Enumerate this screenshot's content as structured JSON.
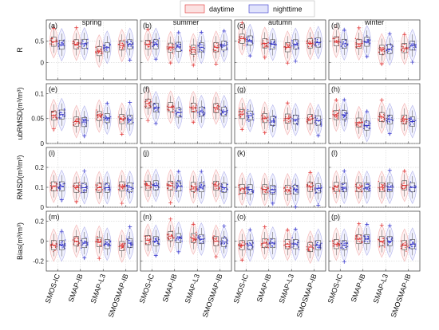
{
  "legend": {
    "daytime": "daytime",
    "nighttime": "nighttime",
    "daytime_color": "#e03030",
    "nighttime_color": "#3333cc",
    "daytime_fill": "#fbe1e1",
    "nighttime_fill": "#e1e3fb"
  },
  "seasons": [
    "spring",
    "summer",
    "autumn",
    "winter"
  ],
  "products": [
    "SMOS-IC",
    "SMAP-IB",
    "SMAP-L3",
    "SMOSMAP-IB"
  ],
  "chart_data": {
    "type": "violin-box-scatter",
    "grid": true,
    "legend_position": "top-center",
    "series": [
      {
        "name": "daytime"
      },
      {
        "name": "nighttime"
      }
    ],
    "metrics": [
      {
        "key": "R",
        "ylabel": "R",
        "ylim": [
          -0.4,
          1.0
        ],
        "ticks": [
          0,
          0.5
        ],
        "tick_labels": [
          "0",
          "0.5"
        ],
        "panels": [
          "(a)",
          "(b)",
          "(c)",
          "(d)"
        ],
        "medians": {
          "spring": {
            "daytime": [
              0.49,
              0.43,
              0.27,
              0.4
            ],
            "nighttime": [
              0.42,
              0.44,
              0.36,
              0.43
            ]
          },
          "summer": {
            "daytime": [
              0.42,
              0.35,
              0.3,
              0.36
            ],
            "nighttime": [
              0.43,
              0.37,
              0.36,
              0.4
            ]
          },
          "autumn": {
            "daytime": [
              0.56,
              0.45,
              0.36,
              0.45
            ],
            "nighttime": [
              0.52,
              0.43,
              0.43,
              0.47
            ]
          },
          "winter": {
            "daytime": [
              0.5,
              0.44,
              0.3,
              0.34
            ],
            "nighttime": [
              0.44,
              0.49,
              0.32,
              0.4
            ]
          }
        }
      },
      {
        "key": "ubRMSD",
        "ylabel": "ubRMSD(m³/m³)",
        "ylim": [
          0.0,
          0.12
        ],
        "ticks": [
          0,
          0.05,
          0.1
        ],
        "tick_labels": [
          "0",
          "0.05",
          "0.1"
        ],
        "panels": [
          "(e)",
          "(f)",
          "(g)",
          "(h)"
        ],
        "medians": {
          "spring": {
            "daytime": [
              0.056,
              0.044,
              0.055,
              0.049
            ],
            "nighttime": [
              0.058,
              0.043,
              0.051,
              0.048
            ]
          },
          "summer": {
            "daytime": [
              0.08,
              0.073,
              0.072,
              0.071
            ],
            "nighttime": [
              0.072,
              0.062,
              0.064,
              0.064
            ]
          },
          "autumn": {
            "daytime": [
              0.059,
              0.051,
              0.05,
              0.049
            ],
            "nighttime": [
              0.056,
              0.045,
              0.048,
              0.046
            ]
          },
          "winter": {
            "daytime": [
              0.057,
              0.042,
              0.053,
              0.048
            ],
            "nighttime": [
              0.057,
              0.036,
              0.048,
              0.044
            ]
          }
        }
      },
      {
        "key": "RMSD",
        "ylabel": "RMSD(m³/m³)",
        "ylim": [
          0.0,
          0.3
        ],
        "ticks": [
          0,
          0.1,
          0.2
        ],
        "tick_labels": [
          "0",
          "0.1",
          "0.2"
        ],
        "panels": [
          "(i)",
          "(j)",
          "(k)",
          "(l)"
        ],
        "medians": {
          "spring": {
            "daytime": [
              0.105,
              0.098,
              0.098,
              0.105
            ],
            "nighttime": [
              0.105,
              0.098,
              0.098,
              0.1
            ]
          },
          "summer": {
            "daytime": [
              0.108,
              0.108,
              0.102,
              0.108
            ],
            "nighttime": [
              0.11,
              0.105,
              0.1,
              0.098
            ]
          },
          "autumn": {
            "daytime": [
              0.092,
              0.09,
              0.088,
              0.102
            ],
            "nighttime": [
              0.09,
              0.088,
              0.088,
              0.095
            ]
          },
          "winter": {
            "daytime": [
              0.102,
              0.1,
              0.1,
              0.11
            ],
            "nighttime": [
              0.1,
              0.1,
              0.1,
              0.1
            ]
          }
        }
      },
      {
        "key": "Bias",
        "ylabel": "Bias(m³/m³)",
        "ylim": [
          -0.3,
          0.3
        ],
        "ticks": [
          -0.2,
          0,
          0.2
        ],
        "tick_labels": [
          "-0.2",
          "0",
          "0.2"
        ],
        "panels": [
          "(m)",
          "(n)",
          "(o)",
          "(p)"
        ],
        "medians": {
          "spring": {
            "daytime": [
              -0.04,
              0.0,
              -0.01,
              -0.05
            ],
            "nighttime": [
              -0.04,
              -0.02,
              -0.03,
              -0.02
            ]
          },
          "summer": {
            "daytime": [
              0.01,
              0.05,
              0.03,
              0.0
            ],
            "nighttime": [
              0.0,
              0.03,
              0.02,
              -0.01
            ]
          },
          "autumn": {
            "daytime": [
              -0.04,
              -0.02,
              -0.03,
              -0.06
            ],
            "nighttime": [
              -0.04,
              -0.02,
              -0.03,
              -0.04
            ]
          },
          "winter": {
            "daytime": [
              -0.03,
              0.02,
              0.0,
              -0.04
            ],
            "nighttime": [
              -0.04,
              0.02,
              0.0,
              -0.03
            ]
          }
        }
      }
    ]
  }
}
